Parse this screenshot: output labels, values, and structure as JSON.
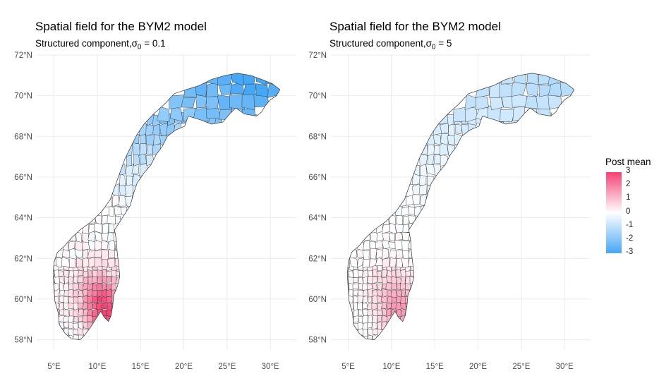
{
  "panels": [
    {
      "title": "Spatial field for the BYM2 model",
      "subtitle_prefix": "Structured component,",
      "subtitle_sigma_symbol": "σ",
      "subtitle_sigma_index": "0",
      "subtitle_value": " = 0.1",
      "strength": 1.0,
      "north_bias": 1.0
    },
    {
      "title": "Spatial field for the BYM2 model",
      "subtitle_prefix": "Structured component,",
      "subtitle_sigma_symbol": "σ",
      "subtitle_sigma_index": "0",
      "subtitle_value": " = 5",
      "strength": 0.55,
      "north_bias": 0.7
    }
  ],
  "axes": {
    "x_ticks": [
      5,
      10,
      15,
      20,
      25,
      30
    ],
    "x_tick_labels": [
      "5°E",
      "10°E",
      "15°E",
      "20°E",
      "25°E",
      "30°E"
    ],
    "y_ticks": [
      58,
      60,
      62,
      64,
      66,
      68,
      70,
      72
    ],
    "y_tick_labels": [
      "58°N",
      "60°N",
      "62°N",
      "64°N",
      "66°N",
      "68°N",
      "70°N",
      "72°N"
    ],
    "x_range": [
      3,
      33
    ],
    "y_range": [
      57.5,
      72
    ]
  },
  "legend": {
    "title": "Post mean",
    "labels": [
      "3",
      "2",
      "1",
      "0",
      "-1",
      "-2",
      "-3"
    ],
    "range": [
      -3,
      3
    ],
    "colors": {
      "high": "#f54275",
      "mid": "#ffffff",
      "low": "#46a7f5"
    }
  },
  "map_style": {
    "border_color": "#333333",
    "grid_color": "#ebebeb"
  }
}
